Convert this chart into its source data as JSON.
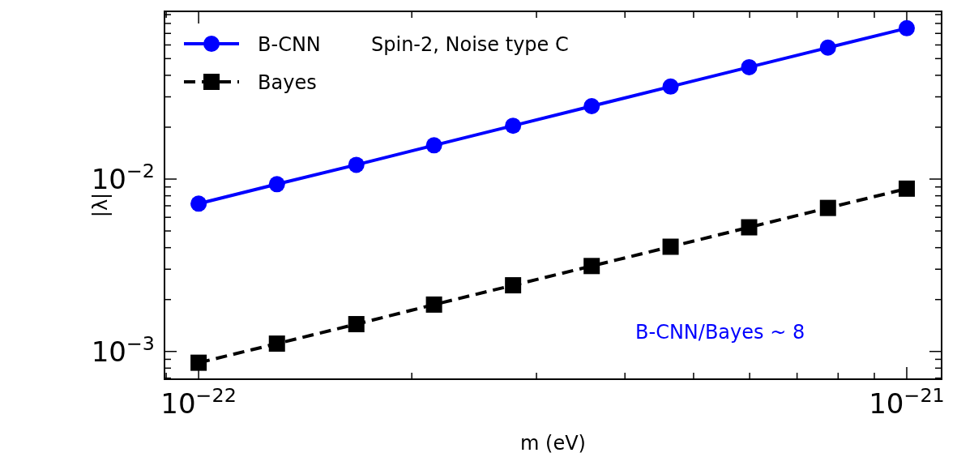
{
  "chart_data": {
    "type": "line",
    "xlabel": "m (eV)",
    "ylabel": "|λ|",
    "log": "xy",
    "legend": "top left",
    "x": [
      1e-22,
      1.29e-22,
      1.67e-22,
      2.15e-22,
      2.78e-22,
      3.59e-22,
      4.64e-22,
      5.99e-22,
      7.74e-22,
      1e-21
    ],
    "series": [
      {
        "name": "B-CNN",
        "color": "#0000ff",
        "marker": "circle",
        "line_style": "solid",
        "values": [
          0.0072,
          0.00934,
          0.0121,
          0.0157,
          0.0204,
          0.0265,
          0.0344,
          0.0446,
          0.0579,
          0.075
        ]
      },
      {
        "name": "Bayes",
        "color": "#000000",
        "marker": "square",
        "line_style": "dashed",
        "values": [
          0.00086,
          0.00111,
          0.00144,
          0.00187,
          0.00242,
          0.00313,
          0.00405,
          0.00525,
          0.0068,
          0.0088
        ]
      }
    ],
    "xlim": [
      8.95e-23,
      1.12e-21
    ],
    "ylim": [
      0.00069,
      0.094
    ],
    "xticks": [
      {
        "value": 9e-23,
        "label": null
      },
      {
        "value": 1e-22,
        "label": "10$^{−22}$"
      },
      {
        "value": 2e-22,
        "label": null
      },
      {
        "value": 3e-22,
        "label": null
      },
      {
        "value": 4e-22,
        "label": null
      },
      {
        "value": 5e-22,
        "label": null
      },
      {
        "value": 6e-22,
        "label": null
      },
      {
        "value": 7e-22,
        "label": null
      },
      {
        "value": 8e-22,
        "label": null
      },
      {
        "value": 9e-22,
        "label": null
      },
      {
        "value": 1e-21,
        "label": "10$^{−21}$"
      }
    ],
    "yticks": [
      {
        "value": 0.0007,
        "label": null
      },
      {
        "value": 0.0008,
        "label": null
      },
      {
        "value": 0.0009,
        "label": null
      },
      {
        "value": 0.001,
        "label": "10$^{−3}$"
      },
      {
        "value": 0.002,
        "label": null
      },
      {
        "value": 0.003,
        "label": null
      },
      {
        "value": 0.004,
        "label": null
      },
      {
        "value": 0.005,
        "label": null
      },
      {
        "value": 0.006,
        "label": null
      },
      {
        "value": 0.007,
        "label": null
      },
      {
        "value": 0.008,
        "label": null
      },
      {
        "value": 0.009,
        "label": null
      },
      {
        "value": 0.01,
        "label": "10$^{−2}$"
      },
      {
        "value": 0.02,
        "label": null
      },
      {
        "value": 0.03,
        "label": null
      },
      {
        "value": 0.04,
        "label": null
      },
      {
        "value": 0.05,
        "label": null
      },
      {
        "value": 0.06,
        "label": null
      },
      {
        "value": 0.07,
        "label": null
      },
      {
        "value": 0.08,
        "label": null
      },
      {
        "value": 0.09,
        "label": null
      }
    ],
    "annotations": [
      "Spin-2, Noise type C",
      "B-CNN/Bayes  ~ 8"
    ]
  }
}
